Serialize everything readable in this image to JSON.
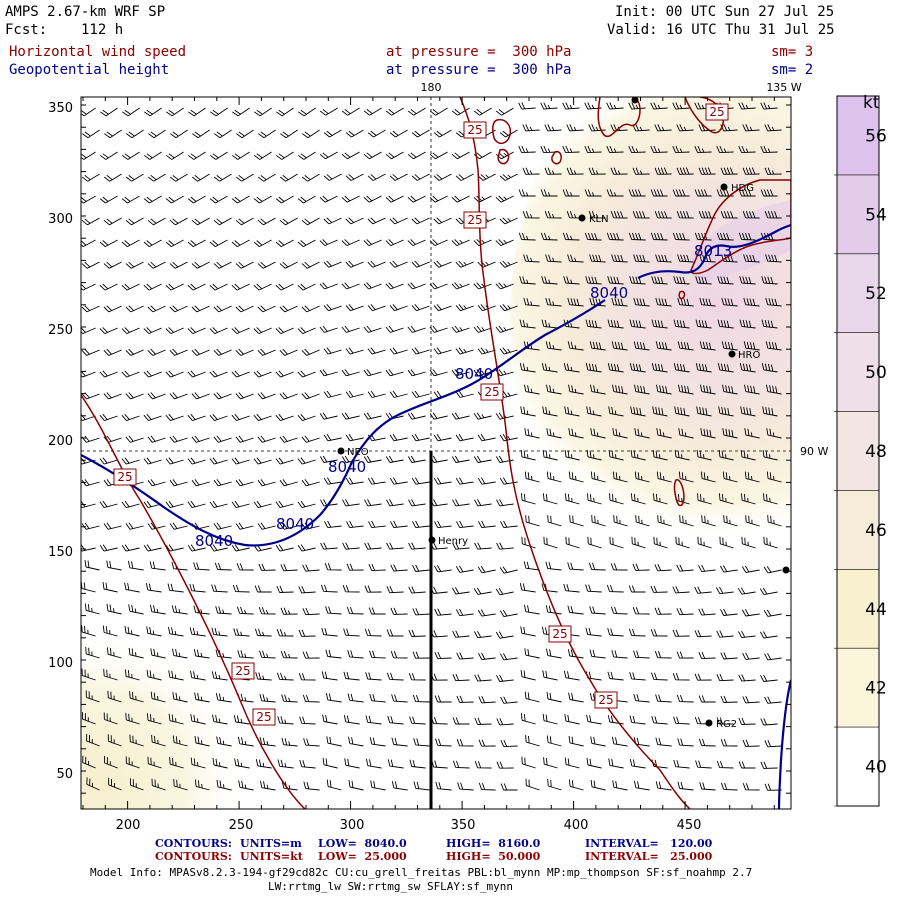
{
  "header": {
    "model": "AMPS 2.67-km WRF SP",
    "fcst_label": "Fcst:",
    "fcst_value": "112 h",
    "init": "Init: 00 UTC Sun 27 Jul 25",
    "valid": "Valid: 16 UTC Thu 31 Jul 25",
    "field1": "Horizontal wind speed",
    "field2": "Geopotential height",
    "level1": "at pressure =  300 hPa",
    "level2": "at pressure =  300 hPa",
    "sm1": "sm= 3",
    "sm2": "sm= 2"
  },
  "map": {
    "lon_180": "180",
    "lon_135w": "135 W",
    "lon_90w": "90 W",
    "x_ticks": [
      "200",
      "250",
      "300",
      "350",
      "400",
      "450"
    ],
    "y_ticks": [
      "50",
      "100",
      "150",
      "200",
      "250",
      "300",
      "350"
    ],
    "stations": [
      "HDG",
      "KLN",
      "HRO",
      "NEO",
      "Henry",
      "RG2"
    ],
    "height_labels": [
      "8040",
      "8040",
      "8040",
      "8040",
      "8040"
    ],
    "height_label_partial": "8013",
    "speed_labels": [
      "25",
      "25",
      "25",
      "25",
      "25",
      "25",
      "25",
      "25",
      "25"
    ],
    "colors": {
      "height_contour": "#00008b",
      "speed_contour": "#8b0000",
      "barb": "#000000"
    }
  },
  "colorbar": {
    "unit": "kt",
    "labels": [
      "56",
      "54",
      "52",
      "50",
      "48",
      "46",
      "44",
      "42",
      "40"
    ],
    "colors": [
      "#dcc2ec",
      "#e2cce9",
      "#e8d6ea",
      "#efdfe8",
      "#f2e6e3",
      "#f6ecda",
      "#f8f0cf",
      "#fbf5dc",
      "#ffffff"
    ]
  },
  "footer": {
    "c1_label": "CONTOURS:",
    "c1_units": "UNITS=m",
    "c1_low": "LOW=  8040.0",
    "c1_high": "HIGH=  8160.0",
    "c1_int": "INTERVAL=   120.00",
    "c2_label": "CONTOURS:",
    "c2_units": "UNITS=kt",
    "c2_low": "LOW=  25.000",
    "c2_high": "HIGH=  50.000",
    "c2_int": "INTERVAL=   25.000",
    "info1": "Model Info: MPASv8.2.3-194-gf29cd82c CU:cu_grell_freitas PBL:bl_mynn MP:mp_thompson SF:sf_noahmp 2.7",
    "info2": "LW:rrtmg_lw SW:rrtmg_sw SFLAY:sf_mynn"
  }
}
